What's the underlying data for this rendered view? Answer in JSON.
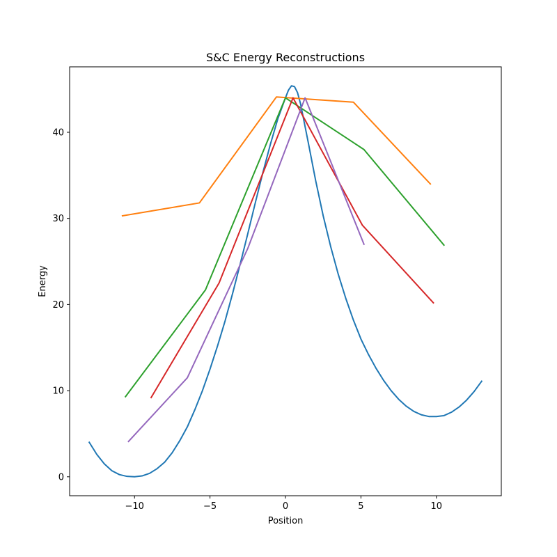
{
  "chart_data": {
    "type": "line",
    "title": "S&C Energy Reconstructions",
    "xlabel": "Position",
    "ylabel": "Energy",
    "xlim": [
      -14.3,
      14.3
    ],
    "ylim": [
      -2.2,
      47.6
    ],
    "xticks": [
      -10,
      -5,
      0,
      5,
      10
    ],
    "xtick_labels": [
      "−10",
      "−5",
      "0",
      "5",
      "10"
    ],
    "yticks": [
      0,
      10,
      20,
      30,
      40
    ],
    "ytick_labels": [
      "0",
      "10",
      "20",
      "30",
      "40"
    ],
    "grid": false,
    "legend": "none",
    "curve": {
      "color": "#1f77b4",
      "points": [
        [
          -13.0,
          4.0
        ],
        [
          -12.5,
          2.6
        ],
        [
          -12.0,
          1.5
        ],
        [
          -11.5,
          0.7
        ],
        [
          -11.0,
          0.25
        ],
        [
          -10.5,
          0.05
        ],
        [
          -10.0,
          0.0
        ],
        [
          -9.5,
          0.1
        ],
        [
          -9.0,
          0.4
        ],
        [
          -8.5,
          0.95
        ],
        [
          -8.0,
          1.7
        ],
        [
          -7.5,
          2.8
        ],
        [
          -7.0,
          4.2
        ],
        [
          -6.5,
          5.8
        ],
        [
          -6.0,
          7.8
        ],
        [
          -5.5,
          10.0
        ],
        [
          -5.0,
          12.5
        ],
        [
          -4.5,
          15.2
        ],
        [
          -4.0,
          18.1
        ],
        [
          -3.5,
          21.3
        ],
        [
          -3.0,
          24.7
        ],
        [
          -2.5,
          28.2
        ],
        [
          -2.0,
          31.8
        ],
        [
          -1.5,
          35.3
        ],
        [
          -1.0,
          38.6
        ],
        [
          -0.5,
          41.6
        ],
        [
          0.0,
          44.0
        ],
        [
          0.2,
          44.9
        ],
        [
          0.4,
          45.4
        ],
        [
          0.6,
          45.3
        ],
        [
          0.8,
          44.6
        ],
        [
          1.0,
          43.3
        ],
        [
          1.5,
          38.9
        ],
        [
          2.0,
          34.4
        ],
        [
          2.5,
          30.3
        ],
        [
          3.0,
          26.7
        ],
        [
          3.5,
          23.5
        ],
        [
          4.0,
          20.7
        ],
        [
          4.5,
          18.2
        ],
        [
          5.0,
          16.0
        ],
        [
          5.5,
          14.2
        ],
        [
          6.0,
          12.6
        ],
        [
          6.5,
          11.2
        ],
        [
          7.0,
          10.0
        ],
        [
          7.5,
          9.0
        ],
        [
          8.0,
          8.2
        ],
        [
          8.5,
          7.6
        ],
        [
          9.0,
          7.2
        ],
        [
          9.5,
          7.0
        ],
        [
          10.0,
          7.0
        ],
        [
          10.5,
          7.1
        ],
        [
          11.0,
          7.5
        ],
        [
          11.5,
          8.1
        ],
        [
          12.0,
          8.9
        ],
        [
          12.5,
          9.9
        ],
        [
          13.0,
          11.1
        ]
      ]
    },
    "series": [
      {
        "color": "#ff7f0e",
        "points": [
          [
            -10.8,
            30.3
          ],
          [
            -5.7,
            31.8
          ],
          [
            -0.6,
            44.1
          ],
          [
            4.5,
            43.5
          ],
          [
            9.6,
            34.0
          ]
        ]
      },
      {
        "color": "#2ca02c",
        "points": [
          [
            -10.6,
            9.3
          ],
          [
            -5.3,
            21.7
          ],
          [
            0.0,
            44.0
          ],
          [
            5.2,
            38.0
          ],
          [
            10.5,
            26.9
          ]
        ]
      },
      {
        "color": "#d62728",
        "points": [
          [
            -8.9,
            9.2
          ],
          [
            -4.4,
            22.5
          ],
          [
            0.5,
            44.0
          ],
          [
            5.1,
            29.2
          ],
          [
            9.8,
            20.2
          ]
        ]
      },
      {
        "color": "#9467bd",
        "points": [
          [
            -10.4,
            4.1
          ],
          [
            -6.5,
            11.5
          ],
          [
            -2.5,
            26.5
          ],
          [
            1.3,
            44.0
          ],
          [
            5.2,
            27.0
          ]
        ]
      }
    ]
  }
}
